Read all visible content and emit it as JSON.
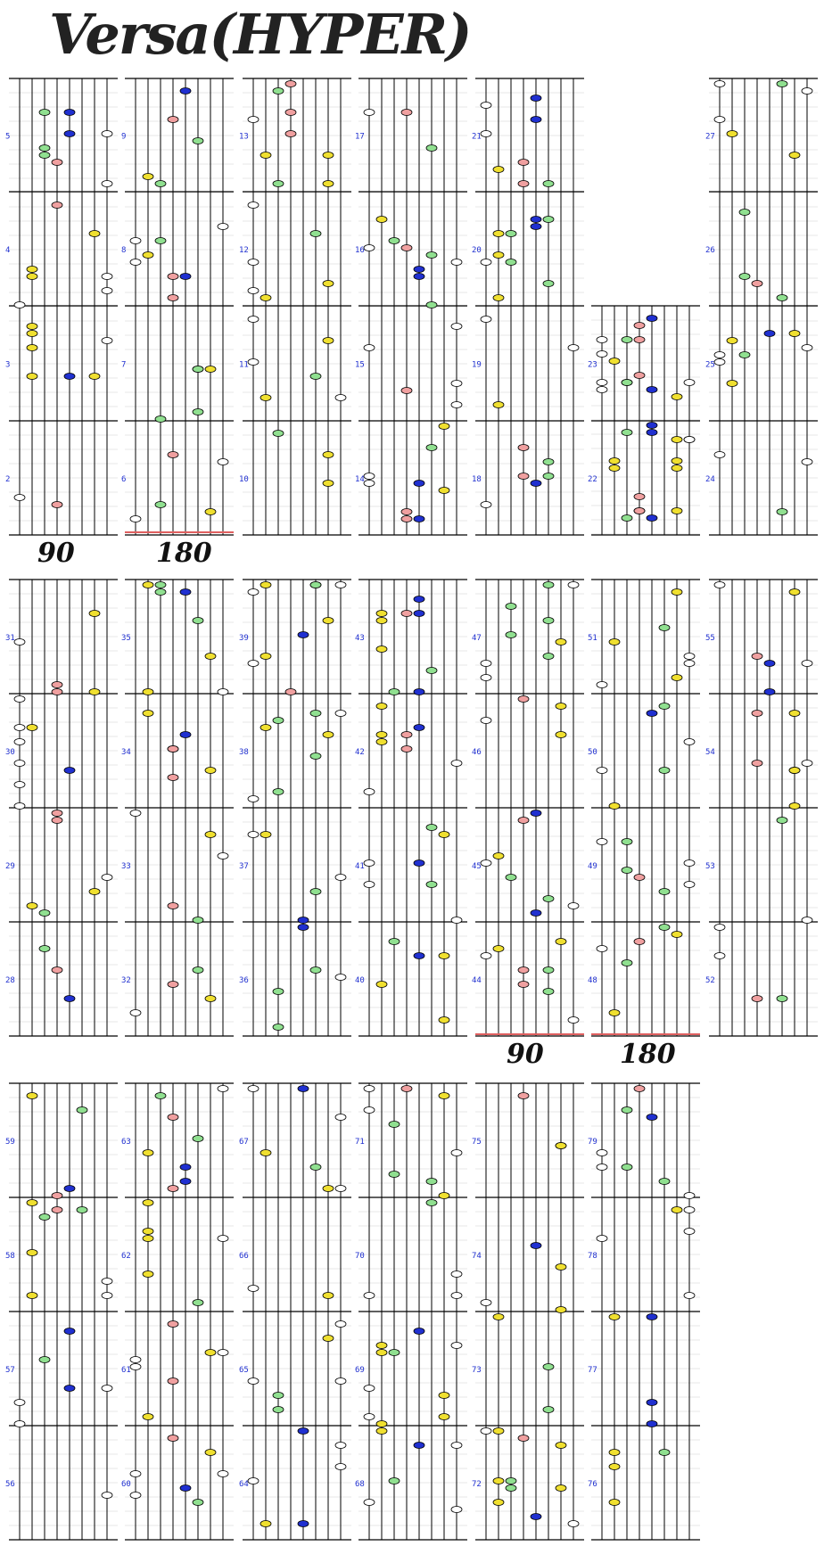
{
  "title": "Versa(HYPER)",
  "speeds": [
    "90",
    "180",
    "90",
    "180"
  ],
  "measures": {
    "row1": [
      "5",
      "4",
      "3",
      "2",
      "9",
      "8",
      "7",
      "6",
      "13",
      "12",
      "11",
      "10",
      "17",
      "16",
      "15",
      "14",
      "21",
      "20",
      "19",
      "18",
      "23",
      "22",
      "27",
      "26",
      "25",
      "24"
    ],
    "row2": [
      "31",
      "30",
      "29",
      "28",
      "35",
      "34",
      "33",
      "32",
      "39",
      "38",
      "37",
      "36",
      "43",
      "42",
      "41",
      "40",
      "47",
      "46",
      "45",
      "44",
      "51",
      "50",
      "49",
      "48",
      "55",
      "54",
      "53",
      "52"
    ],
    "row3": [
      "59",
      "58",
      "57",
      "56",
      "63",
      "62",
      "61",
      "60",
      "67",
      "66",
      "65",
      "64",
      "71",
      "70",
      "69",
      "68",
      "75",
      "74",
      "73",
      "72",
      "79",
      "78",
      "77",
      "76"
    ]
  },
  "colors": {
    "white": "#ffffff",
    "yellow": "#f0e030",
    "blue": "#2030d0",
    "pink": "#f0a0a0",
    "green": "#90e090",
    "bar": "#000000",
    "grid": "#d0d0d0",
    "measure_num": "#2030d0",
    "speed_line": "#e06060"
  },
  "lanes": [
    "white",
    "yellow",
    "green",
    "pink",
    "blue",
    "green",
    "yellow",
    "white"
  ]
}
